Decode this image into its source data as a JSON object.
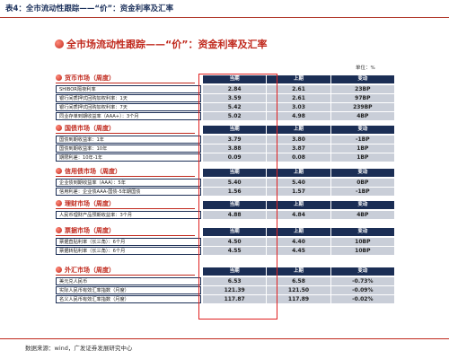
{
  "caption": "表4：全市流动性跟踪——“价”：资金利率及汇率",
  "title": "全市场流动性跟踪——“价”：资金利率及汇率",
  "unit": "单位：%",
  "col_headers": {
    "current": "当期",
    "previous": "上期",
    "change": "变动"
  },
  "sections": [
    {
      "title": "货币市场（周度）",
      "rows": [
        {
          "label": "SHIBOR隔夜利率",
          "current": "2.84",
          "previous": "2.61",
          "change": "23BP"
        },
        {
          "label": "银行间质押式回购加权利率：1天",
          "current": "3.59",
          "previous": "2.61",
          "change": "97BP"
        },
        {
          "label": "银行间质押式回购加权利率：7天",
          "current": "5.42",
          "previous": "3.03",
          "change": "239BP"
        },
        {
          "label": "同业存单到期收益率（AAA+）：3个月",
          "current": "5.02",
          "previous": "4.98",
          "change": "4BP"
        }
      ]
    },
    {
      "title": "国债市场（周度）",
      "rows": [
        {
          "label": "国债到期收益率：1年",
          "current": "3.79",
          "previous": "3.80",
          "change": "-1BP"
        },
        {
          "label": "国债到期收益率：10年",
          "current": "3.88",
          "previous": "3.87",
          "change": "1BP"
        },
        {
          "label": "期限利差：10年-1年",
          "current": "0.09",
          "previous": "0.08",
          "change": "1BP"
        }
      ]
    },
    {
      "title": "信用债市场（周度）",
      "rows": [
        {
          "label": "企业债到期收益率（AAA）：5年",
          "current": "5.40",
          "previous": "5.40",
          "change": "0BP"
        },
        {
          "label": "信用利差：企业债AAA-国债-5年期国债",
          "current": "1.56",
          "previous": "1.57",
          "change": "-1BP"
        }
      ]
    },
    {
      "title": "理财市场（周度）",
      "rows": [
        {
          "label": "人民币理财产品预期收益率：3个月",
          "current": "4.88",
          "previous": "4.84",
          "change": "4BP"
        }
      ]
    },
    {
      "title": "票据市场（周度）",
      "rows": [
        {
          "label": "票据直贴利率（长三角）：6个月",
          "current": "4.50",
          "previous": "4.40",
          "change": "10BP"
        },
        {
          "label": "票据转贴利率（长三角）：6个月",
          "current": "4.55",
          "previous": "4.45",
          "change": "10BP"
        }
      ]
    },
    {
      "title": "外汇市场（周度）",
      "rows": [
        {
          "label": "美元兑人民币",
          "current": "6.53",
          "previous": "6.58",
          "change": "-0.73%"
        },
        {
          "label": "实际人民币有效汇率指数（月度）",
          "current": "121.39",
          "previous": "121.50",
          "change": "-0.09%"
        },
        {
          "label": "名义人民币有效汇率指数（月度）",
          "current": "117.87",
          "previous": "117.89",
          "change": "-0.02%"
        }
      ]
    }
  ],
  "source": "数据来源：wind，广发证券发展研究中心"
}
